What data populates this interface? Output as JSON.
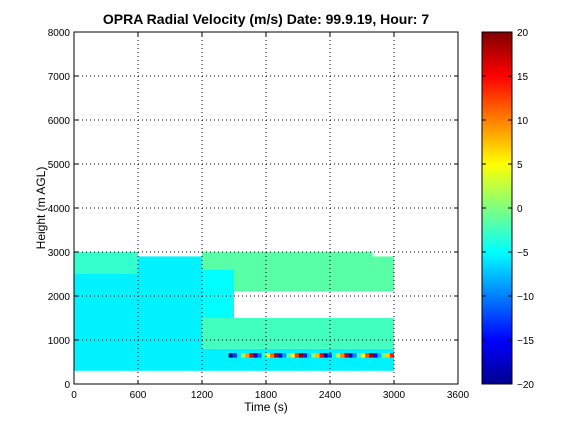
{
  "chart_data": {
    "type": "heatmap",
    "title": "OPRA Radial Velocity (m/s)  Date: 99.9.19, Hour: 7",
    "xlabel": "Time (s)",
    "ylabel": "Height (m AGL)",
    "xlim": [
      0,
      3600
    ],
    "ylim": [
      0,
      8000
    ],
    "xticks": [
      0,
      600,
      1200,
      1800,
      2400,
      3000,
      3600
    ],
    "xtick_labels": [
      "0",
      "600",
      "1200",
      "1800",
      "2400",
      "3000",
      "3600"
    ],
    "yticks": [
      0,
      1000,
      2000,
      3000,
      4000,
      5000,
      6000,
      7000,
      8000
    ],
    "ytick_labels": [
      "0",
      "1000",
      "2000",
      "3000",
      "4000",
      "5000",
      "6000",
      "7000",
      "8000"
    ],
    "grid": true,
    "colormap": "jet",
    "colorbar": {
      "range": [
        -20,
        20
      ],
      "ticks": [
        -20,
        -15,
        -10,
        -5,
        0,
        5,
        10,
        15,
        20
      ],
      "tick_labels": [
        "−20",
        "−15",
        "−10",
        "−5",
        "0",
        "5",
        "10",
        "15",
        "20"
      ]
    },
    "regions": [
      {
        "x": [
          0,
          1200
        ],
        "y": [
          300,
          2900
        ],
        "value": -5.5
      },
      {
        "x": [
          1200,
          3000
        ],
        "y": [
          300,
          800
        ],
        "value": -5.5
      },
      {
        "x": [
          1200,
          3000
        ],
        "y": [
          800,
          1500
        ],
        "value": -2.5
      },
      {
        "x": [
          1200,
          1500
        ],
        "y": [
          1500,
          2900
        ],
        "value": -5
      },
      {
        "x": [
          1500,
          3000
        ],
        "y": [
          2100,
          2900
        ],
        "value": -1.5
      },
      {
        "x": [
          0,
          600
        ],
        "y": [
          2500,
          3000
        ],
        "value": -3
      },
      {
        "x": [
          1200,
          2800
        ],
        "y": [
          2600,
          3000
        ],
        "value": -1.5
      }
    ],
    "near_surface_extremes": {
      "x": [
        1450,
        3000
      ],
      "y": [
        600,
        700
      ],
      "value_range": [
        -20,
        20
      ]
    }
  }
}
